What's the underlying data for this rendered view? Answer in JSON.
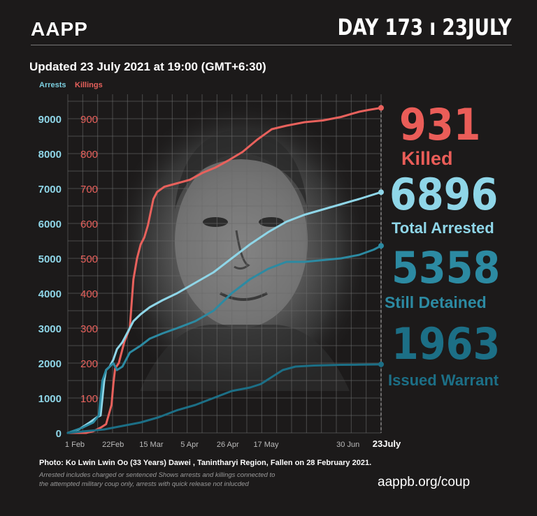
{
  "header": {
    "logo": "AAPP",
    "day_label": "DAY 173 ı 23JULY",
    "updated": "Updated 23 July 2021 at 19:00 (GMT+6:30)"
  },
  "colors": {
    "background": "#1c1a1a",
    "killings": "#e8615c",
    "arrests": "#8fd6e8",
    "detained": "#2c8aa2",
    "warrant": "#1c6f86",
    "grid": "#6a6a6a"
  },
  "stats": {
    "killed_value": "931",
    "killed_label": "Killed",
    "arrested_value": "6896",
    "arrested_label": "Total Arrested",
    "detained_value": "5358",
    "detained_label": "Still Detained",
    "warrant_value": "1963",
    "warrant_label": "Issued Warrant"
  },
  "footer": {
    "photo_credit": "Photo:  Ko Lwin Lwin Oo (33 Years) Dawei , Tanintharyi Region, Fallen on 28 February 2021.",
    "footnote": "Arrested includes charged or sentenced Shows arrests and killings connected to the attempted military coup only, arrests with quick release not inlucded",
    "website": "aappb.org/coup"
  },
  "chart_data": {
    "type": "line",
    "legend": [
      "Arrests",
      "Killings"
    ],
    "x_ticks": [
      "1 Feb",
      "22Feb",
      "15 Mar",
      "5 Apr",
      "26 Apr",
      "17 May",
      "30 Jun",
      "23July"
    ],
    "x_range_days": [
      0,
      172
    ],
    "y_left_ticks": [
      "0",
      "1000",
      "2000",
      "3000",
      "4000",
      "5000",
      "6000",
      "7000",
      "8000",
      "9000"
    ],
    "y_right_ticks": [
      "100",
      "200",
      "300",
      "400",
      "500",
      "600",
      "700",
      "800",
      "900"
    ],
    "y_left_range": [
      0,
      9000
    ],
    "y_right_range": [
      0,
      900
    ],
    "grid": true,
    "series": [
      {
        "name": "Killings",
        "axis": "right",
        "points": [
          [
            0,
            0
          ],
          [
            10,
            0
          ],
          [
            14,
            5
          ],
          [
            18,
            15
          ],
          [
            21,
            25
          ],
          [
            24,
            80
          ],
          [
            25,
            140
          ],
          [
            26,
            185
          ],
          [
            28,
            200
          ],
          [
            31,
            260
          ],
          [
            34,
            300
          ],
          [
            35,
            370
          ],
          [
            36,
            440
          ],
          [
            38,
            500
          ],
          [
            40,
            540
          ],
          [
            42,
            560
          ],
          [
            44,
            595
          ],
          [
            47,
            670
          ],
          [
            49,
            690
          ],
          [
            53,
            705
          ],
          [
            60,
            715
          ],
          [
            67,
            725
          ],
          [
            74,
            745
          ],
          [
            81,
            760
          ],
          [
            88,
            780
          ],
          [
            96,
            805
          ],
          [
            104,
            840
          ],
          [
            112,
            870
          ],
          [
            120,
            880
          ],
          [
            130,
            890
          ],
          [
            140,
            895
          ],
          [
            150,
            905
          ],
          [
            160,
            920
          ],
          [
            165,
            925
          ],
          [
            172,
            931
          ]
        ]
      },
      {
        "name": "Total Arrested",
        "axis": "left",
        "points": [
          [
            0,
            0
          ],
          [
            6,
            100
          ],
          [
            12,
            300
          ],
          [
            16,
            450
          ],
          [
            18,
            500
          ],
          [
            19,
            1000
          ],
          [
            20,
            1500
          ],
          [
            21,
            1800
          ],
          [
            23,
            1900
          ],
          [
            25,
            2100
          ],
          [
            27,
            2400
          ],
          [
            30,
            2600
          ],
          [
            33,
            2900
          ],
          [
            36,
            3200
          ],
          [
            40,
            3400
          ],
          [
            45,
            3600
          ],
          [
            52,
            3800
          ],
          [
            60,
            4000
          ],
          [
            70,
            4300
          ],
          [
            80,
            4600
          ],
          [
            90,
            5000
          ],
          [
            100,
            5400
          ],
          [
            110,
            5750
          ],
          [
            120,
            6050
          ],
          [
            130,
            6250
          ],
          [
            140,
            6400
          ],
          [
            150,
            6550
          ],
          [
            160,
            6700
          ],
          [
            172,
            6896
          ]
        ]
      },
      {
        "name": "Still Detained",
        "axis": "left",
        "points": [
          [
            0,
            0
          ],
          [
            8,
            150
          ],
          [
            14,
            300
          ],
          [
            17,
            500
          ],
          [
            19,
            1500
          ],
          [
            21,
            1800
          ],
          [
            23,
            1900
          ],
          [
            25,
            2000
          ],
          [
            27,
            1800
          ],
          [
            30,
            1900
          ],
          [
            34,
            2300
          ],
          [
            40,
            2500
          ],
          [
            45,
            2700
          ],
          [
            52,
            2850
          ],
          [
            60,
            3000
          ],
          [
            70,
            3200
          ],
          [
            80,
            3500
          ],
          [
            90,
            4000
          ],
          [
            100,
            4400
          ],
          [
            110,
            4700
          ],
          [
            120,
            4900
          ],
          [
            130,
            4900
          ],
          [
            140,
            4950
          ],
          [
            150,
            5000
          ],
          [
            160,
            5100
          ],
          [
            168,
            5250
          ],
          [
            172,
            5358
          ]
        ]
      },
      {
        "name": "Issued Warrant",
        "axis": "left",
        "points": [
          [
            0,
            0
          ],
          [
            20,
            100
          ],
          [
            30,
            200
          ],
          [
            40,
            300
          ],
          [
            50,
            450
          ],
          [
            60,
            650
          ],
          [
            70,
            800
          ],
          [
            80,
            1000
          ],
          [
            90,
            1200
          ],
          [
            100,
            1300
          ],
          [
            106,
            1400
          ],
          [
            112,
            1600
          ],
          [
            118,
            1800
          ],
          [
            125,
            1900
          ],
          [
            135,
            1930
          ],
          [
            150,
            1950
          ],
          [
            160,
            1955
          ],
          [
            172,
            1963
          ]
        ]
      }
    ]
  }
}
